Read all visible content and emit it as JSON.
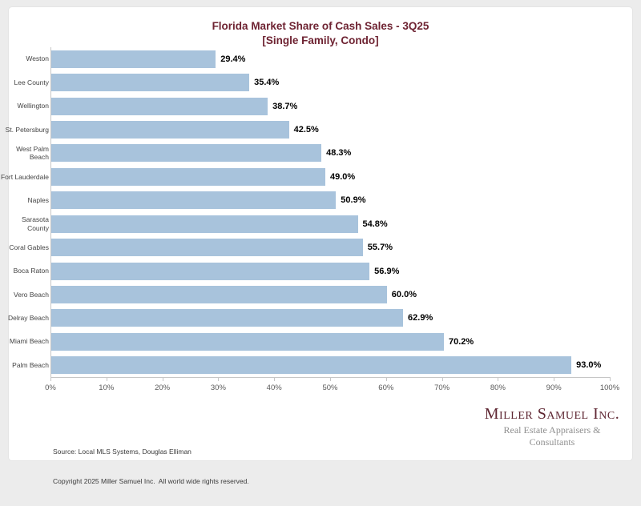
{
  "page": {
    "background": "#ececec",
    "card_background": "#ffffff"
  },
  "chart_data": {
    "type": "bar",
    "orientation": "horizontal",
    "title": "Florida Market Share of Cash Sales - 3Q25",
    "subtitle": "[Single Family, Condo]",
    "title_color": "#6e2332",
    "bar_color": "#a8c3dc",
    "grid": false,
    "xlim": [
      0,
      100
    ],
    "x_ticks": [
      "0%",
      "10%",
      "20%",
      "30%",
      "40%",
      "50%",
      "60%",
      "70%",
      "80%",
      "90%",
      "100%"
    ],
    "categories": [
      "Weston",
      "Lee County",
      "Wellington",
      "St. Petersburg",
      "West Palm\nBeach",
      "Fort Lauderdale",
      "Naples",
      "Sarasota\nCounty",
      "Coral Gables",
      "Boca Raton",
      "Vero Beach",
      "Delray Beach",
      "Miami Beach",
      "Palm Beach"
    ],
    "values": [
      29.4,
      35.4,
      38.7,
      42.5,
      48.3,
      49.0,
      50.9,
      54.8,
      55.7,
      56.9,
      60.0,
      62.9,
      70.2,
      93.0
    ],
    "value_label_format": "one-decimal-percent"
  },
  "footer": {
    "source_line1": "Source: Local MLS Systems, Douglas Elliman",
    "source_line2": "Copyright 2025 Miller Samuel Inc.  All world wide rights reserved.",
    "logo": {
      "name": "Miller Samuel Inc.",
      "tagline": "Real Estate Appraisers & Consultants",
      "color": "#5f2733"
    }
  }
}
